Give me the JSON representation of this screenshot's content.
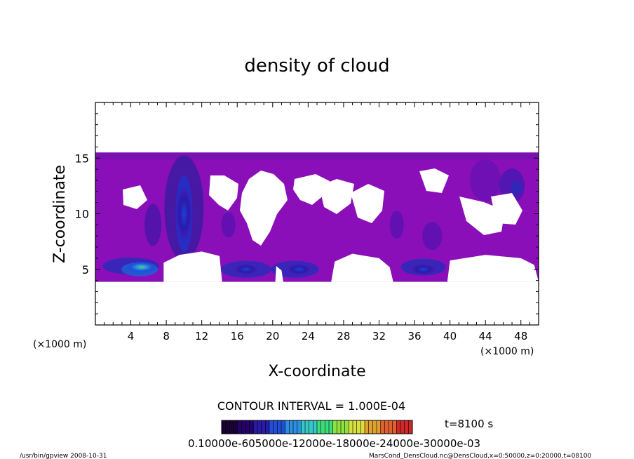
{
  "chart_data": {
    "type": "heatmap",
    "title": "density of cloud",
    "xlabel": "X-coordinate",
    "ylabel": "Z-coordinate",
    "x_unit_left": "(×1000 m)",
    "x_unit_right": "(×1000 m)",
    "xlim": [
      0,
      50
    ],
    "ylim": [
      0,
      20
    ],
    "xticks": [
      4,
      8,
      12,
      16,
      20,
      24,
      28,
      32,
      36,
      40,
      44,
      48
    ],
    "yticks": [
      5,
      10,
      15
    ],
    "contour_interval": "CONTOUR INTERVAL = 1.000E-04",
    "time_label": "t=8100 s",
    "colorbar_labels": "0.10000e-605000e-12000e-18000e-24000e-30000e-03",
    "colorbar_colors": [
      "#1a0033",
      "#26006b",
      "#2a1aa8",
      "#1f4fd6",
      "#2c8fe0",
      "#39c6c6",
      "#3ddc7a",
      "#8fe040",
      "#d8e040",
      "#e0a030",
      "#e06030",
      "#d02828"
    ],
    "background_color": "#8a0fb8",
    "cloud_layer": {
      "z_top": 15.5,
      "z_bottom_main": 4
    },
    "hotspots": [
      {
        "x": 10,
        "z": 10,
        "level": "high"
      },
      {
        "x": 5,
        "z": 5,
        "level": "max"
      },
      {
        "x": 17,
        "z": 5,
        "level": "medium"
      },
      {
        "x": 23,
        "z": 5,
        "level": "medium"
      },
      {
        "x": 37,
        "z": 5,
        "level": "medium"
      },
      {
        "x": 47,
        "z": 12.5,
        "level": "low"
      },
      {
        "x": 43,
        "z": 13,
        "level": "low"
      }
    ]
  },
  "footer": {
    "left": "/usr/bin/gpview   2008-10-31",
    "right": "MarsCond_DensCloud.nc@DensCloud,x=0:50000,z=0:20000,t=08100"
  }
}
